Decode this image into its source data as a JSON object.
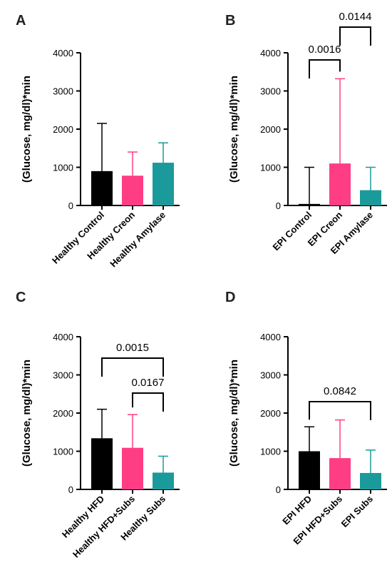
{
  "chart_data": [
    {
      "panel": "A",
      "type": "bar",
      "ylabel": "(Glucose, mg/dl)*min",
      "ylim": [
        0,
        4000
      ],
      "yticks": [
        0,
        1000,
        2000,
        3000,
        4000
      ],
      "categories": [
        "Healthy Control",
        "Healthy Creon",
        "Healthy Amylase"
      ],
      "values": [
        900,
        780,
        1120
      ],
      "error_upper": [
        2150,
        1400,
        1640
      ],
      "colors": [
        "#000000",
        "#ff3d85",
        "#1a9a9a"
      ],
      "comparisons": []
    },
    {
      "panel": "B",
      "type": "bar",
      "ylabel": "(Glucose, mg/dl)*min",
      "ylim": [
        0,
        4000
      ],
      "yticks": [
        0,
        1000,
        2000,
        3000,
        4000
      ],
      "categories": [
        "EPI Control",
        "EPI Creon",
        "EPI Amylase"
      ],
      "values": [
        40,
        1100,
        400
      ],
      "error_upper": [
        1000,
        3320,
        1000
      ],
      "colors": [
        "#000000",
        "#ff3d85",
        "#1a9a9a"
      ],
      "comparisons": [
        {
          "from": 0,
          "to": 1,
          "label": "0.0016",
          "level": 0
        },
        {
          "from": 1,
          "to": 2,
          "label": "0.0144",
          "level": 1
        }
      ]
    },
    {
      "panel": "C",
      "type": "bar",
      "ylabel": "(Glucose, mg/dl)*min",
      "ylim": [
        0,
        4000
      ],
      "yticks": [
        0,
        1000,
        2000,
        3000,
        4000
      ],
      "categories": [
        "Healthy HFD",
        "Healthy HFD+Subs",
        "Healthy Subs"
      ],
      "values": [
        1340,
        1090,
        440
      ],
      "error_upper": [
        2100,
        1960,
        870
      ],
      "colors": [
        "#000000",
        "#ff3d85",
        "#1a9a9a"
      ],
      "comparisons": [
        {
          "from": 0,
          "to": 2,
          "label": "0.0015",
          "level": 1
        },
        {
          "from": 1,
          "to": 2,
          "label": "0.0167",
          "level": 0
        }
      ]
    },
    {
      "panel": "D",
      "type": "bar",
      "ylabel": "(Glucose, mg/dl)*min",
      "ylim": [
        0,
        4000
      ],
      "yticks": [
        0,
        1000,
        2000,
        3000,
        4000
      ],
      "categories": [
        "EPI HFD",
        "EPI HFD+Subs",
        "EPI Subs"
      ],
      "values": [
        1000,
        820,
        430
      ],
      "error_upper": [
        1640,
        1820,
        1030
      ],
      "colors": [
        "#000000",
        "#ff3d85",
        "#1a9a9a"
      ],
      "comparisons": [
        {
          "from": 0,
          "to": 2,
          "label": "0.0842",
          "level": 0
        }
      ]
    }
  ]
}
